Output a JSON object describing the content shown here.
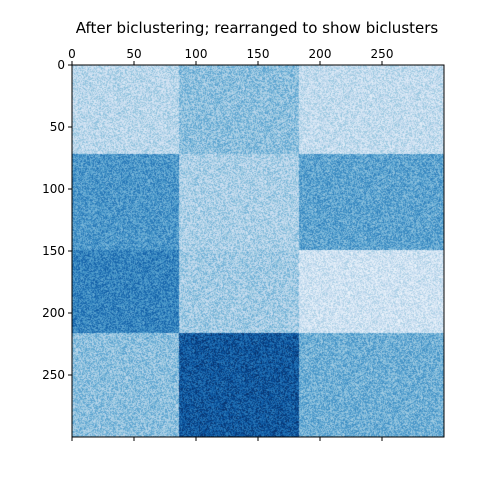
{
  "chart_data": {
    "type": "heatmap",
    "title": "After biclustering; rearranged to show biclusters",
    "colormap": "Blues",
    "xlim": [
      0,
      300
    ],
    "ylim": [
      0,
      300
    ],
    "x_axis_position": "top",
    "y_axis_inverted": true,
    "grid": false,
    "x_ticks": [
      0,
      50,
      100,
      150,
      200,
      250
    ],
    "y_ticks": [
      0,
      50,
      100,
      150,
      200,
      250
    ],
    "x_tick_labels": [
      "0",
      "50",
      "100",
      "150",
      "200",
      "250"
    ],
    "y_tick_labels": [
      "0",
      "50",
      "100",
      "150",
      "200",
      "250"
    ],
    "col_boundaries": [
      0,
      86,
      183,
      300
    ],
    "row_boundaries": [
      0,
      72,
      149,
      216,
      300
    ],
    "block_values": [
      [
        0.28,
        0.42,
        0.25
      ],
      [
        0.6,
        0.33,
        0.55
      ],
      [
        0.68,
        0.36,
        0.2
      ],
      [
        0.42,
        0.85,
        0.5
      ]
    ],
    "colors": {
      "low": "#f7fbff",
      "high": "#08306b"
    }
  }
}
